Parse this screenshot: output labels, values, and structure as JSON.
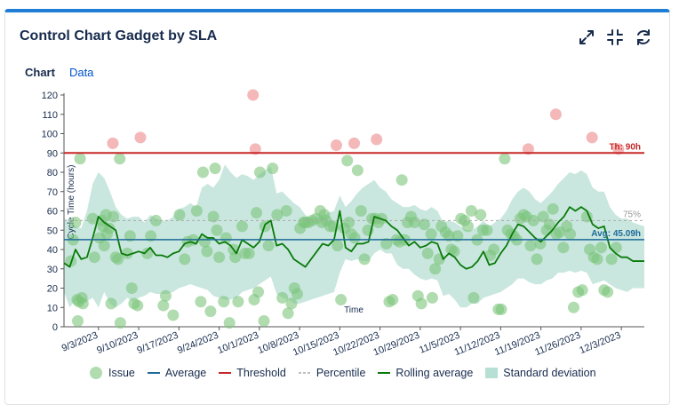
{
  "gadget": {
    "title": "Control Chart Gadget by SLA",
    "tabs": [
      {
        "label": "Chart",
        "active": true
      },
      {
        "label": "Data",
        "active": false
      }
    ],
    "icons": [
      "expand-icon",
      "collapse-icon",
      "refresh-icon"
    ]
  },
  "colors": {
    "issue": "#7cc47c",
    "outlier": "#f0a0a0",
    "average": "#1f6a9a",
    "threshold": "#c62828",
    "percentile": "#aaaaaa",
    "rolling": "#0a7a0a",
    "stddev": "#b7dfd3"
  },
  "chart_data": {
    "type": "scatter",
    "ylabel": "Cycle Time (hours)",
    "xlabel": "Time",
    "ylim": [
      0,
      120
    ],
    "yticks": [
      0,
      10,
      20,
      30,
      40,
      50,
      60,
      70,
      80,
      90,
      100,
      110,
      120
    ],
    "xlim": [
      0,
      101
    ],
    "xticks": [
      {
        "pos": 6,
        "label": "9/3/2023"
      },
      {
        "pos": 13,
        "label": "9/10/2023"
      },
      {
        "pos": 20,
        "label": "9/17/2023"
      },
      {
        "pos": 27,
        "label": "9/24/2023"
      },
      {
        "pos": 34,
        "label": "10/1/2023"
      },
      {
        "pos": 41,
        "label": "10/8/2023"
      },
      {
        "pos": 48,
        "label": "10/15/2023"
      },
      {
        "pos": 55,
        "label": "10/22/2023"
      },
      {
        "pos": 62,
        "label": "10/29/2023"
      },
      {
        "pos": 69,
        "label": "11/5/2023"
      },
      {
        "pos": 76,
        "label": "11/12/2023"
      },
      {
        "pos": 83,
        "label": "11/19/2023"
      },
      {
        "pos": 90,
        "label": "11/26/2023"
      },
      {
        "pos": 97,
        "label": "12/3/2023"
      }
    ],
    "threshold": {
      "value": 90,
      "label": "Th: 90h"
    },
    "average": {
      "value": 45.09,
      "label": "Avg: 45.09h"
    },
    "percentile": {
      "value": 55,
      "label": "75%"
    },
    "issues": [
      [
        1.2,
        34
      ],
      [
        1.6,
        45
      ],
      [
        2,
        54
      ],
      [
        2.3,
        14
      ],
      [
        2.4,
        3
      ],
      [
        2.6,
        13
      ],
      [
        2.8,
        87
      ],
      [
        3.1,
        15
      ],
      [
        3.3,
        12
      ],
      [
        5,
        56
      ],
      [
        5.3,
        36
      ],
      [
        6.2,
        46
      ],
      [
        6.6,
        55
      ],
      [
        6.8,
        52
      ],
      [
        7,
        42
      ],
      [
        7.3,
        58
      ],
      [
        7.5,
        48
      ],
      [
        7.9,
        51
      ],
      [
        8.2,
        12
      ],
      [
        8.6,
        57
      ],
      [
        9,
        36
      ],
      [
        9.4,
        35
      ],
      [
        9.7,
        87
      ],
      [
        9.8,
        2
      ],
      [
        11,
        38
      ],
      [
        11.5,
        47
      ],
      [
        11.8,
        20
      ],
      [
        12.2,
        12
      ],
      [
        12.8,
        11
      ],
      [
        14.5,
        38
      ],
      [
        15.1,
        47
      ],
      [
        16,
        55
      ],
      [
        17.3,
        11
      ],
      [
        17.7,
        16
      ],
      [
        19,
        6
      ],
      [
        20.1,
        58
      ],
      [
        21,
        35
      ],
      [
        21.5,
        44
      ],
      [
        22.5,
        45
      ],
      [
        23.1,
        60
      ],
      [
        23.8,
        13
      ],
      [
        24.2,
        80
      ],
      [
        24.5,
        44
      ],
      [
        24.9,
        39
      ],
      [
        25.5,
        8
      ],
      [
        26,
        57
      ],
      [
        26.3,
        82
      ],
      [
        26.6,
        50
      ],
      [
        27,
        36
      ],
      [
        27.8,
        13
      ],
      [
        28.2,
        46
      ],
      [
        28.8,
        2
      ],
      [
        29.5,
        40
      ],
      [
        29.8,
        36
      ],
      [
        30.3,
        13
      ],
      [
        31,
        52
      ],
      [
        31.5,
        38
      ],
      [
        32.2,
        38
      ],
      [
        33.1,
        14
      ],
      [
        33.5,
        59
      ],
      [
        33.8,
        18
      ],
      [
        34.1,
        80
      ],
      [
        34.8,
        3
      ],
      [
        35,
        52
      ],
      [
        35.6,
        42
      ],
      [
        36.3,
        82
      ],
      [
        37.1,
        58
      ],
      [
        38,
        15
      ],
      [
        38.7,
        60
      ],
      [
        39,
        7
      ],
      [
        39.6,
        12
      ],
      [
        40.1,
        20
      ],
      [
        40.6,
        17
      ],
      [
        41.1,
        51
      ],
      [
        41.7,
        54
      ],
      [
        42,
        54
      ],
      [
        42.5,
        54
      ],
      [
        43.2,
        55
      ],
      [
        43.9,
        56
      ],
      [
        44.6,
        60
      ],
      [
        44.9,
        54
      ],
      [
        45.3,
        58
      ],
      [
        45.6,
        55
      ],
      [
        46.3,
        52
      ],
      [
        46.9,
        52
      ],
      [
        47.6,
        42
      ],
      [
        48.2,
        14
      ],
      [
        48.8,
        51
      ],
      [
        49.3,
        86
      ],
      [
        49.6,
        54
      ],
      [
        50,
        48
      ],
      [
        50.6,
        46
      ],
      [
        51.1,
        81
      ],
      [
        51.7,
        60
      ],
      [
        52.3,
        35
      ],
      [
        52.9,
        50
      ],
      [
        53.6,
        56
      ],
      [
        54.2,
        56
      ],
      [
        54.7,
        54
      ],
      [
        55.3,
        56
      ],
      [
        56.1,
        43
      ],
      [
        56.6,
        13
      ],
      [
        57.2,
        14
      ],
      [
        57.9,
        45
      ],
      [
        58.4,
        44
      ],
      [
        58.8,
        76
      ],
      [
        59.3,
        45
      ],
      [
        59.8,
        54
      ],
      [
        60.4,
        57
      ],
      [
        61,
        54
      ],
      [
        61.6,
        16
      ],
      [
        62.2,
        12
      ],
      [
        62.7,
        53
      ],
      [
        63.3,
        38
      ],
      [
        63.9,
        48
      ],
      [
        64.1,
        15
      ],
      [
        64.6,
        30
      ],
      [
        65.3,
        35
      ],
      [
        65.7,
        52
      ],
      [
        66.4,
        49
      ],
      [
        67,
        47
      ],
      [
        67.4,
        40
      ],
      [
        67.9,
        39
      ],
      [
        68.5,
        47
      ],
      [
        69.1,
        56
      ],
      [
        69.7,
        55
      ],
      [
        70.3,
        52
      ],
      [
        70.9,
        60
      ],
      [
        71.3,
        15
      ],
      [
        71.9,
        45
      ],
      [
        72.5,
        58
      ],
      [
        72.9,
        50
      ],
      [
        73.6,
        50
      ],
      [
        74.2,
        37
      ],
      [
        74.8,
        40
      ],
      [
        75.6,
        9
      ],
      [
        76.1,
        9
      ],
      [
        76.7,
        87
      ],
      [
        77.2,
        50
      ],
      [
        77.8,
        48
      ],
      [
        78.3,
        47
      ],
      [
        78.8,
        45
      ],
      [
        79.4,
        56
      ],
      [
        80,
        58
      ],
      [
        80.5,
        57
      ],
      [
        81.2,
        42
      ],
      [
        81.7,
        55
      ],
      [
        82.3,
        35
      ],
      [
        82.9,
        43
      ],
      [
        83.4,
        57
      ],
      [
        84,
        50
      ],
      [
        84.5,
        53
      ],
      [
        85.1,
        61
      ],
      [
        85.7,
        48
      ],
      [
        86.3,
        49
      ],
      [
        86.9,
        41
      ],
      [
        87.5,
        52
      ],
      [
        88.1,
        48
      ],
      [
        88.7,
        10
      ],
      [
        89.5,
        18
      ],
      [
        90.2,
        19
      ],
      [
        91,
        57
      ],
      [
        91.5,
        40
      ],
      [
        92.2,
        36
      ],
      [
        92.8,
        35
      ],
      [
        93.5,
        41
      ],
      [
        94,
        19
      ],
      [
        94.6,
        18
      ],
      [
        95.3,
        35
      ],
      [
        96.1,
        41
      ]
    ],
    "outliers": [
      [
        8.5,
        95
      ],
      [
        13.3,
        98
      ],
      [
        32.9,
        120
      ],
      [
        33.3,
        92
      ],
      [
        47.4,
        94
      ],
      [
        50.5,
        95
      ],
      [
        54.4,
        97
      ],
      [
        80.8,
        92
      ],
      [
        85.6,
        110
      ],
      [
        91.9,
        98
      ],
      [
        96.5,
        92
      ]
    ],
    "rolling_average": [
      [
        0,
        33
      ],
      [
        1,
        31
      ],
      [
        2,
        40
      ],
      [
        3,
        35
      ],
      [
        4,
        36
      ],
      [
        5,
        46
      ],
      [
        6,
        57
      ],
      [
        7,
        54
      ],
      [
        8,
        52
      ],
      [
        9,
        50
      ],
      [
        10,
        38
      ],
      [
        11,
        37
      ],
      [
        12,
        38
      ],
      [
        13,
        39
      ],
      [
        14,
        38
      ],
      [
        15,
        41
      ],
      [
        16,
        37
      ],
      [
        17,
        37
      ],
      [
        18,
        36
      ],
      [
        19,
        38
      ],
      [
        20,
        39
      ],
      [
        21,
        43
      ],
      [
        22,
        44
      ],
      [
        23,
        43
      ],
      [
        24,
        48
      ],
      [
        25,
        46
      ],
      [
        26,
        46
      ],
      [
        27,
        43
      ],
      [
        28,
        44
      ],
      [
        29,
        42
      ],
      [
        30,
        38
      ],
      [
        31,
        45
      ],
      [
        32,
        43
      ],
      [
        33,
        41
      ],
      [
        34,
        44
      ],
      [
        35,
        53
      ],
      [
        36,
        55
      ],
      [
        37,
        42
      ],
      [
        38,
        43
      ],
      [
        39,
        40
      ],
      [
        40,
        35
      ],
      [
        41,
        33
      ],
      [
        42,
        31
      ],
      [
        43,
        35
      ],
      [
        44,
        39
      ],
      [
        45,
        43
      ],
      [
        46,
        42
      ],
      [
        47,
        45
      ],
      [
        48,
        60
      ],
      [
        49,
        41
      ],
      [
        50,
        39
      ],
      [
        51,
        43
      ],
      [
        52,
        43
      ],
      [
        53,
        44
      ],
      [
        54,
        57
      ],
      [
        55,
        56
      ],
      [
        56,
        55
      ],
      [
        57,
        52
      ],
      [
        58,
        50
      ],
      [
        59,
        46
      ],
      [
        60,
        42
      ],
      [
        61,
        44
      ],
      [
        62,
        41
      ],
      [
        63,
        42
      ],
      [
        64,
        44
      ],
      [
        65,
        43
      ],
      [
        66,
        35
      ],
      [
        67,
        38
      ],
      [
        68,
        36
      ],
      [
        69,
        32
      ],
      [
        70,
        30
      ],
      [
        71,
        31
      ],
      [
        72,
        34
      ],
      [
        73,
        39
      ],
      [
        74,
        32
      ],
      [
        75,
        33
      ],
      [
        76,
        38
      ],
      [
        77,
        42
      ],
      [
        78,
        48
      ],
      [
        79,
        53
      ],
      [
        80,
        52
      ],
      [
        81,
        49
      ],
      [
        82,
        46
      ],
      [
        83,
        44
      ],
      [
        84,
        47
      ],
      [
        85,
        50
      ],
      [
        86,
        54
      ],
      [
        87,
        57
      ],
      [
        88,
        62
      ],
      [
        89,
        60
      ],
      [
        90,
        62
      ],
      [
        91,
        60
      ],
      [
        92,
        53
      ],
      [
        93,
        51
      ],
      [
        94,
        52
      ],
      [
        95,
        41
      ],
      [
        96,
        38
      ],
      [
        97,
        36
      ],
      [
        98,
        36
      ],
      [
        99,
        34
      ],
      [
        100,
        34
      ],
      [
        101,
        34
      ]
    ],
    "std_band": [
      [
        0,
        56,
        18
      ],
      [
        1,
        55,
        10
      ],
      [
        2,
        52,
        14
      ],
      [
        3,
        51,
        12
      ],
      [
        4,
        60,
        13
      ],
      [
        5,
        74,
        15
      ],
      [
        6,
        80,
        10
      ],
      [
        7,
        77,
        18
      ],
      [
        8,
        70,
        12
      ],
      [
        9,
        62,
        10
      ],
      [
        10,
        58,
        12
      ],
      [
        11,
        56,
        15
      ],
      [
        12,
        57,
        13
      ],
      [
        13,
        57,
        15
      ],
      [
        14,
        54,
        16
      ],
      [
        15,
        58,
        18
      ],
      [
        16,
        56,
        17
      ],
      [
        17,
        55,
        17
      ],
      [
        18,
        55,
        17
      ],
      [
        19,
        57,
        18
      ],
      [
        20,
        61,
        20
      ],
      [
        21,
        62,
        21
      ],
      [
        22,
        64,
        22
      ],
      [
        23,
        62,
        21
      ],
      [
        24,
        72,
        20
      ],
      [
        25,
        74,
        19
      ],
      [
        26,
        72,
        16
      ],
      [
        27,
        76,
        15
      ],
      [
        28,
        84,
        14
      ],
      [
        29,
        80,
        14
      ],
      [
        30,
        77,
        15
      ],
      [
        31,
        79,
        18
      ],
      [
        32,
        78,
        19
      ],
      [
        33,
        76,
        20
      ],
      [
        34,
        79,
        22
      ],
      [
        35,
        81,
        24
      ],
      [
        36,
        83,
        26
      ],
      [
        37,
        69,
        17
      ],
      [
        38,
        70,
        15
      ],
      [
        39,
        67,
        14
      ],
      [
        40,
        64,
        12
      ],
      [
        41,
        62,
        12
      ],
      [
        42,
        58,
        13
      ],
      [
        43,
        56,
        14
      ],
      [
        44,
        57,
        15
      ],
      [
        45,
        58,
        16
      ],
      [
        46,
        59,
        17
      ],
      [
        47,
        60,
        18
      ],
      [
        48,
        68,
        28
      ],
      [
        49,
        62,
        35
      ],
      [
        50,
        65,
        34
      ],
      [
        51,
        69,
        35
      ],
      [
        52,
        72,
        34
      ],
      [
        53,
        74,
        34
      ],
      [
        54,
        76,
        38
      ],
      [
        55,
        72,
        40
      ],
      [
        56,
        70,
        38
      ],
      [
        57,
        66,
        38
      ],
      [
        58,
        64,
        32
      ],
      [
        59,
        62,
        30
      ],
      [
        60,
        62,
        30
      ],
      [
        61,
        63,
        27
      ],
      [
        62,
        61,
        25
      ],
      [
        63,
        60,
        24
      ],
      [
        64,
        62,
        25
      ],
      [
        65,
        60,
        24
      ],
      [
        66,
        54,
        16
      ],
      [
        67,
        55,
        17
      ],
      [
        68,
        54,
        14
      ],
      [
        69,
        52,
        10
      ],
      [
        70,
        50,
        10
      ],
      [
        71,
        50,
        12
      ],
      [
        72,
        52,
        12
      ],
      [
        73,
        55,
        15
      ],
      [
        74,
        52,
        16
      ],
      [
        75,
        54,
        17
      ],
      [
        76,
        56,
        18
      ],
      [
        77,
        60,
        20
      ],
      [
        78,
        66,
        22
      ],
      [
        79,
        70,
        25
      ],
      [
        80,
        72,
        25
      ],
      [
        81,
        70,
        23
      ],
      [
        82,
        66,
        22
      ],
      [
        83,
        64,
        22
      ],
      [
        84,
        67,
        24
      ],
      [
        85,
        70,
        25
      ],
      [
        86,
        74,
        28
      ],
      [
        87,
        77,
        28
      ],
      [
        88,
        80,
        29
      ],
      [
        89,
        79,
        28
      ],
      [
        90,
        81,
        29
      ],
      [
        91,
        79,
        28
      ],
      [
        92,
        72,
        22
      ],
      [
        93,
        70,
        23
      ],
      [
        94,
        70,
        24
      ],
      [
        95,
        62,
        22
      ],
      [
        96,
        58,
        20
      ],
      [
        97,
        56,
        19
      ],
      [
        98,
        56,
        18
      ],
      [
        99,
        54,
        20
      ],
      [
        100,
        53,
        20
      ],
      [
        101,
        52,
        20
      ]
    ],
    "legend": [
      "Issue",
      "Average",
      "Threshold",
      "Percentile",
      "Rolling average",
      "Standard deviation"
    ]
  }
}
